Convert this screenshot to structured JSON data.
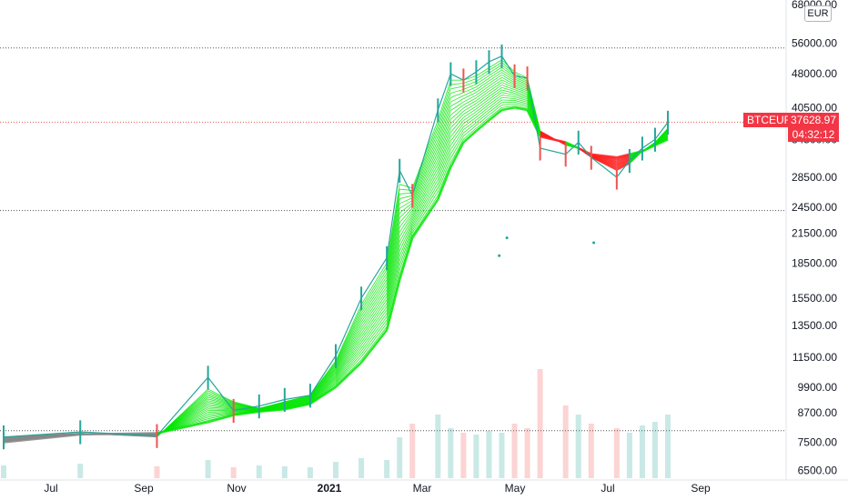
{
  "chart_data": {
    "type": "line",
    "symbol": "BTCEUR",
    "currency": "EUR",
    "last_price": "37628.97",
    "countdown": "04:32:12",
    "y_scale": "log",
    "y_ticks": [
      "68000.00",
      "56000.00",
      "48000.00",
      "40500.00",
      "34500.00",
      "28500.00",
      "24500.00",
      "21500.00",
      "18500.00",
      "15500.00",
      "13500.00",
      "11500.00",
      "9900.00",
      "8700.00",
      "7500.00",
      "6500.00"
    ],
    "x_ticks": [
      "Jul",
      "Sep",
      "Nov",
      "2021",
      "Mar",
      "May",
      "Jul",
      "Sep"
    ],
    "bold_x_tick": "2021",
    "ylim": [
      6200,
      69000
    ],
    "horizontal_dotted_lines": [
      54700,
      37628.97,
      24100,
      7950
    ],
    "price_series": {
      "name": "",
      "x": [
        0,
        3,
        6,
        8,
        9,
        10,
        11,
        12,
        13,
        14,
        15,
        15.5,
        16,
        17,
        17.5,
        18,
        18.5,
        19,
        19.5,
        20,
        20.5,
        21,
        22,
        22.5,
        23,
        24,
        24.5,
        25,
        25.5,
        26
      ],
      "values": [
        7700,
        7900,
        7750,
        10400,
        8800,
        9000,
        9300,
        9500,
        11600,
        15500,
        19000,
        29500,
        26000,
        40000,
        48000,
        46500,
        48500,
        51000,
        52500,
        47500,
        47000,
        33000,
        32000,
        34000,
        31500,
        28500,
        31000,
        33000,
        34500,
        37600
      ]
    },
    "ribbon_trends": {
      "fast": [
        7700,
        7850,
        7700,
        9800,
        9200,
        8900,
        9200,
        9500,
        11300,
        15000,
        18500,
        27500,
        27000,
        38000,
        46500,
        46500,
        47500,
        49500,
        51500,
        48500,
        47000,
        36000,
        33500,
        33000,
        31500,
        29500,
        30500,
        32500,
        34000,
        36500
      ],
      "slow": [
        7500,
        7800,
        7850,
        8300,
        8600,
        8750,
        8850,
        9100,
        9900,
        11200,
        13200,
        17000,
        21000,
        25500,
        30000,
        34000,
        36000,
        38000,
        40000,
        40500,
        40000,
        35000,
        34000,
        33000,
        32000,
        31500,
        32000,
        32500,
        33500,
        34500
      ]
    },
    "volume": [
      14,
      16,
      13,
      20,
      12,
      14,
      13,
      12,
      18,
      22,
      20,
      45,
      60,
      70,
      55,
      50,
      48,
      52,
      50,
      60,
      55,
      120,
      80,
      70,
      60,
      55,
      50,
      58,
      62,
      70
    ],
    "volume_max": 140,
    "scatter_dots": [
      [
        19.7,
        21000
      ],
      [
        19.4,
        19200
      ],
      [
        23.1,
        20500
      ]
    ],
    "colors": {
      "up": "#26a69a",
      "down": "#ef5350",
      "ribbon_up": "#00e600",
      "ribbon_down": "#ff2020",
      "ribbon_grey": "#888888",
      "tag": "#f23645"
    }
  }
}
